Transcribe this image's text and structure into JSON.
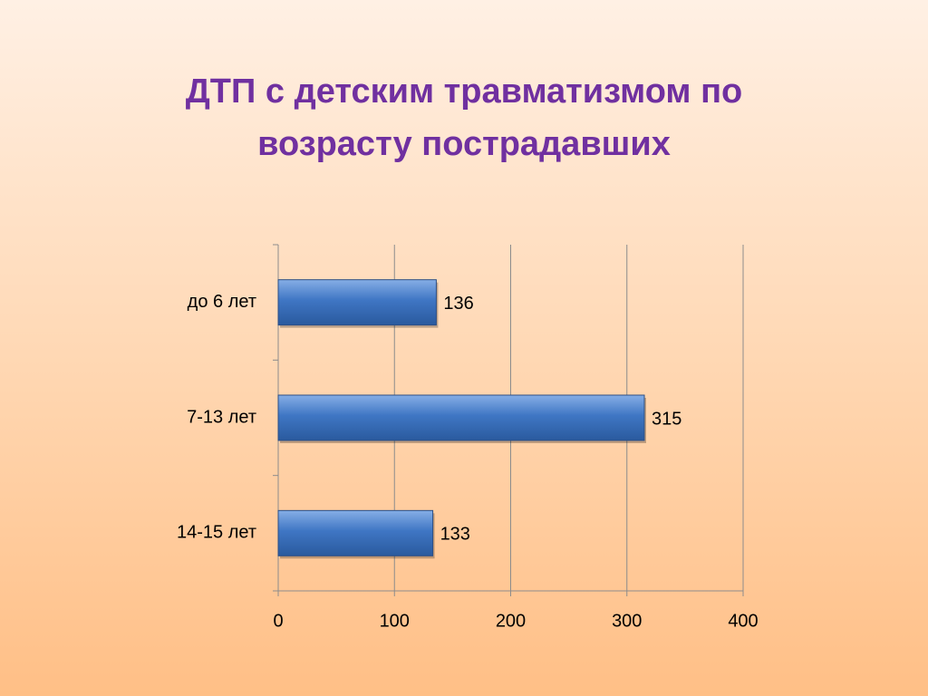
{
  "chart_data": {
    "type": "hbar",
    "title": "ДТП с детским травматизмом по возрасту пострадавших",
    "categories": [
      "до 6 лет",
      "7-13 лет",
      "14-15 лет"
    ],
    "values": [
      136,
      315,
      133
    ],
    "color": "#3f76c4",
    "xlim": [
      0,
      400
    ],
    "xticks": [
      0,
      100,
      200,
      300,
      400
    ],
    "grid": true
  }
}
